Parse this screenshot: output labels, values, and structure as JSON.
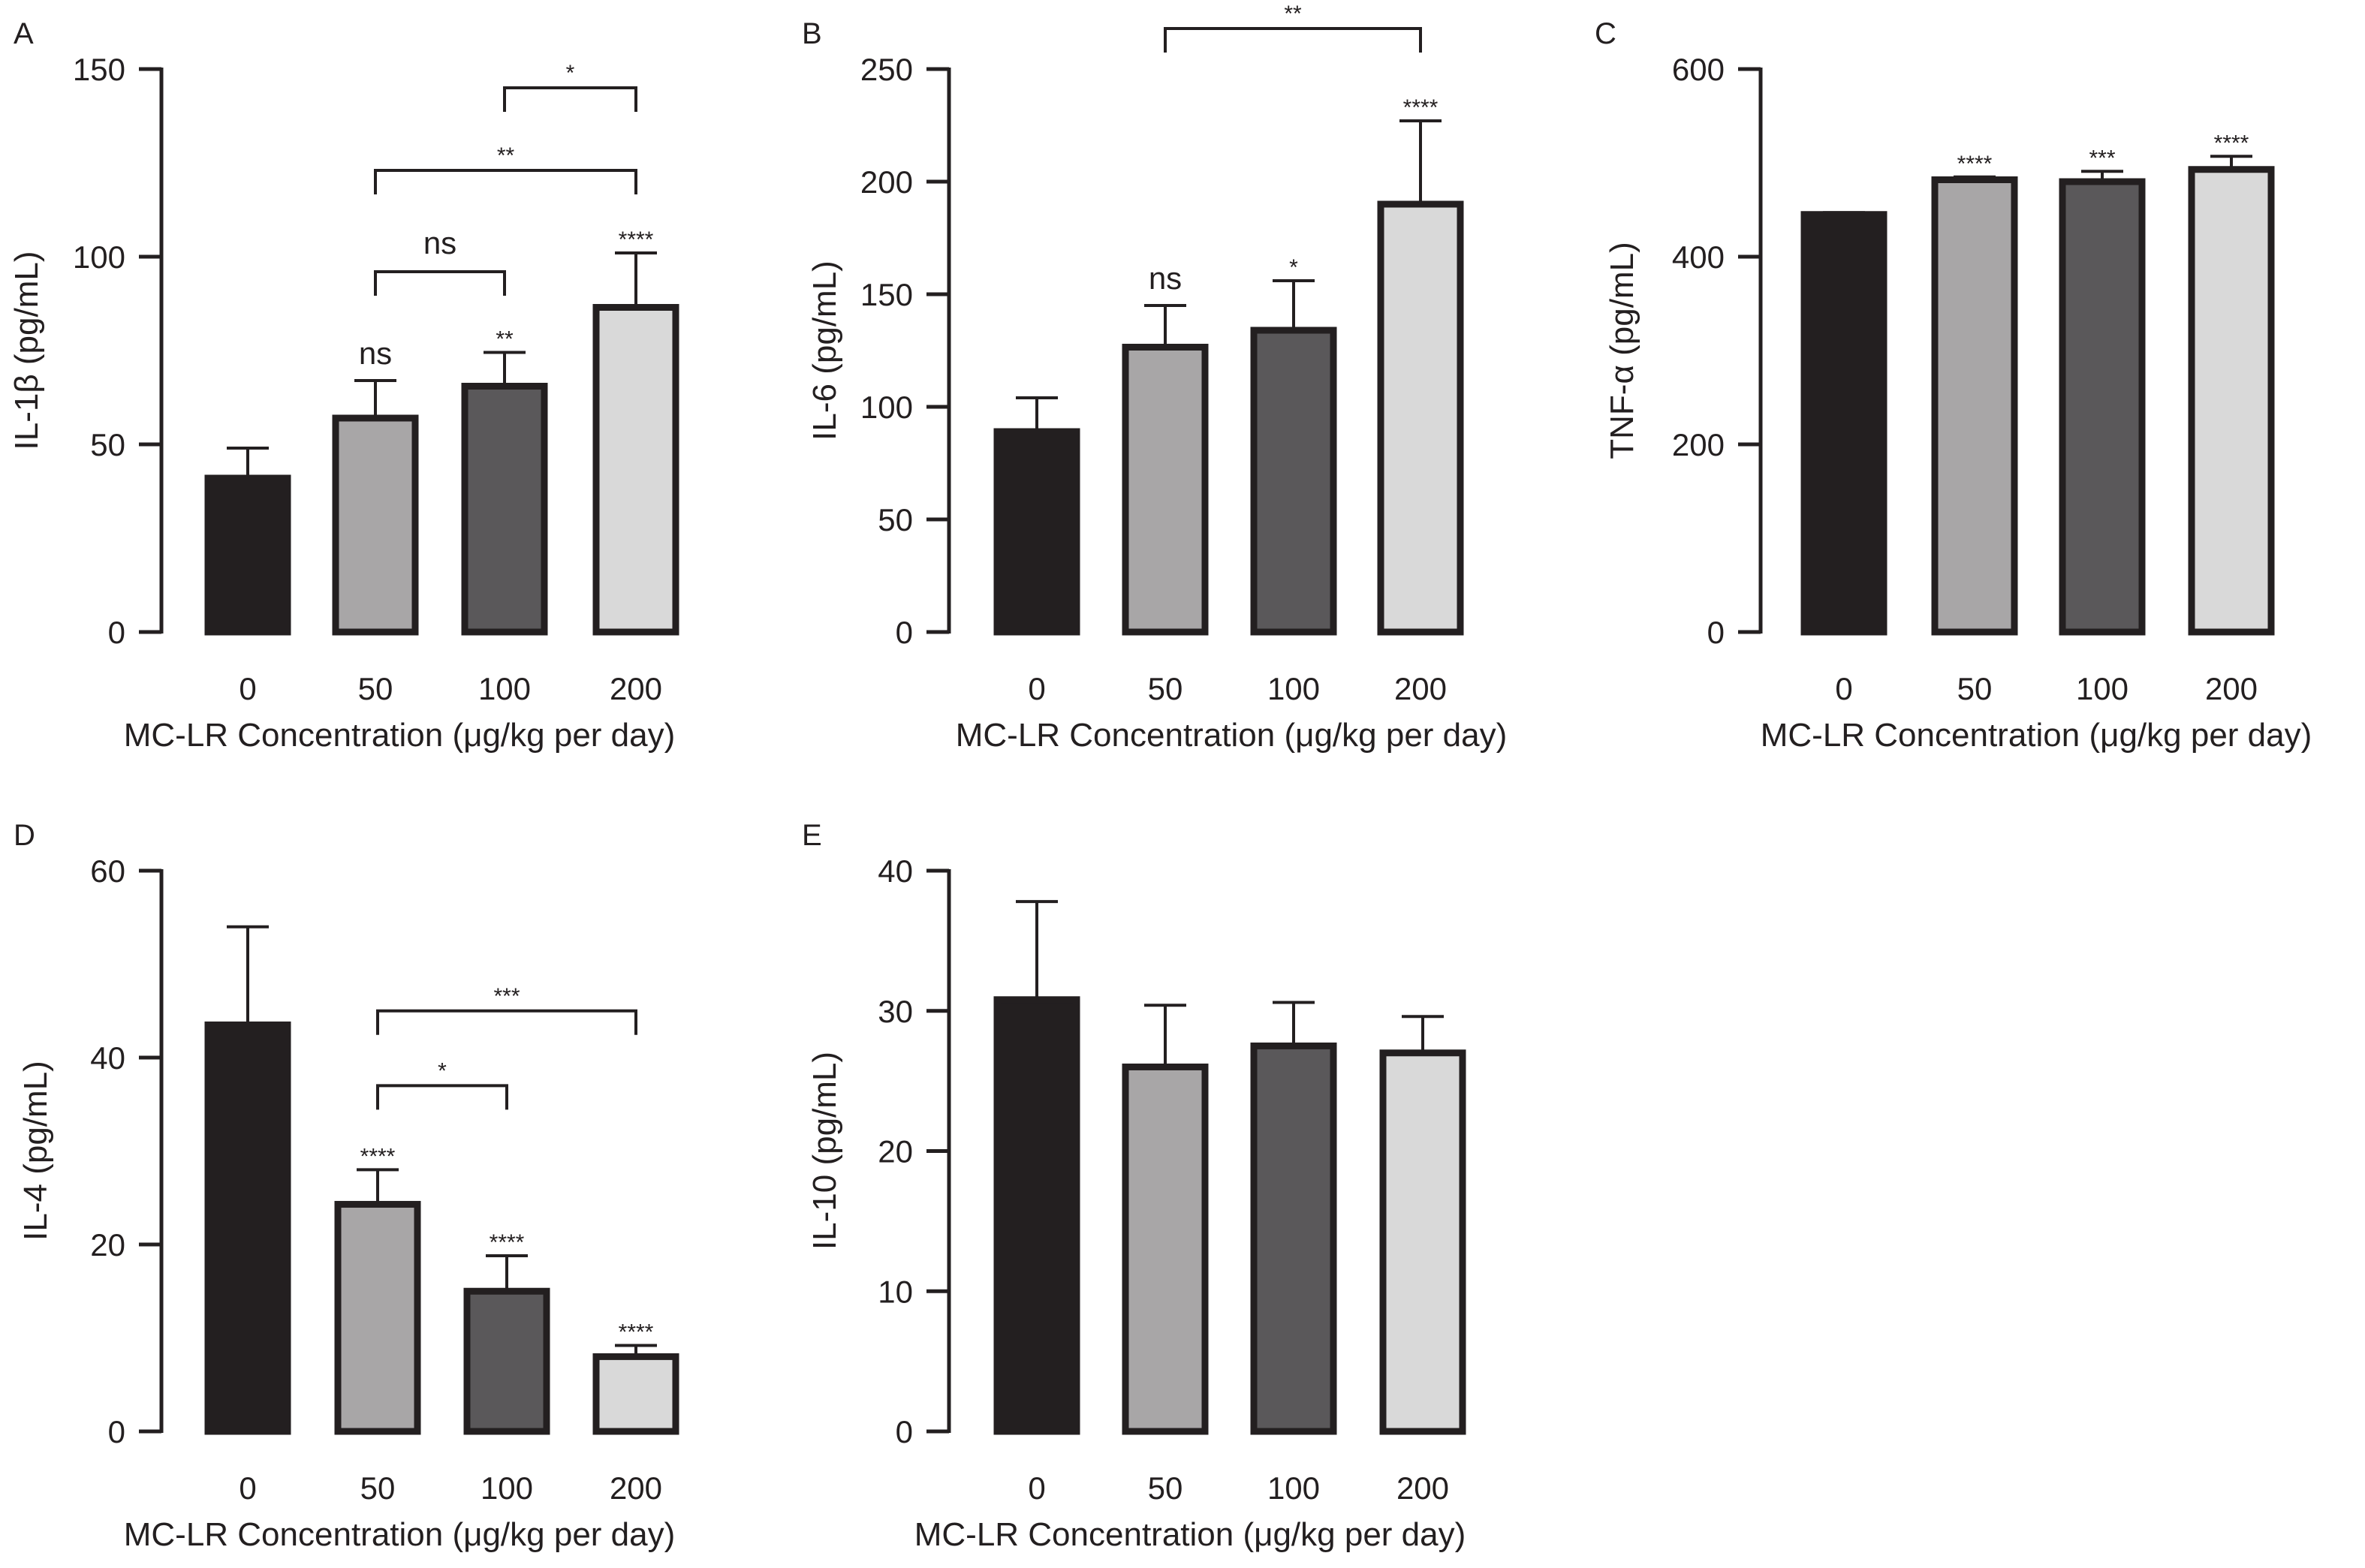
{
  "chart_data": [
    {
      "panel": "A",
      "type": "bar",
      "categories": [
        "0",
        "50",
        "100",
        "200"
      ],
      "values": [
        41,
        57,
        65.5,
        86.5
      ],
      "errors": [
        8,
        10,
        9,
        14.5
      ],
      "bar_colors": [
        "#231f20",
        "#a8a6a7",
        "#5a585a",
        "#d9d9d9"
      ],
      "ylabel": "IL-1β (pg/mL)",
      "xlabel": "MC-LR Concentration (μg/kg per day)",
      "ylim": [
        0,
        150
      ],
      "yticks": [
        "0",
        "50",
        "100",
        "150"
      ],
      "bar_annotations": [
        "",
        "ns",
        "**",
        "****"
      ],
      "brackets": [
        {
          "from": 1,
          "to": 2,
          "label": "ns",
          "y": 96
        },
        {
          "from": 1,
          "to": 3,
          "label": "**",
          "y": 123
        },
        {
          "from": 2,
          "to": 3,
          "label": "*",
          "y": 145
        }
      ]
    },
    {
      "panel": "B",
      "type": "bar",
      "categories": [
        "0",
        "50",
        "100",
        "200"
      ],
      "values": [
        89,
        126.5,
        134,
        190
      ],
      "errors": [
        15,
        18.5,
        22,
        37
      ],
      "bar_colors": [
        "#231f20",
        "#a8a6a7",
        "#5a585a",
        "#d9d9d9"
      ],
      "ylabel": "IL-6 (pg/mL)",
      "xlabel": "MC-LR Concentration (μg/kg per day)",
      "ylim": [
        0,
        250
      ],
      "yticks": [
        "0",
        "50",
        "100",
        "150",
        "200",
        "250"
      ],
      "bar_annotations": [
        "",
        "ns",
        "*",
        "****"
      ],
      "brackets": [
        {
          "from": 1,
          "to": 3,
          "label": "**",
          "y": 268
        }
      ]
    },
    {
      "panel": "C",
      "type": "bar",
      "categories": [
        "0",
        "50",
        "100",
        "200"
      ],
      "values": [
        445,
        482,
        480,
        493
      ],
      "errors": [
        2,
        3,
        11,
        14
      ],
      "bar_colors": [
        "#231f20",
        "#a8a6a7",
        "#5a585a",
        "#d9d9d9"
      ],
      "ylabel": "TNF-α (pg/mL)",
      "xlabel": "MC-LR Concentration (μg/kg per day)",
      "ylim": [
        0,
        600
      ],
      "yticks": [
        "0",
        "200",
        "400",
        "600"
      ],
      "bar_annotations": [
        "",
        "****",
        "***",
        "****"
      ],
      "brackets": []
    },
    {
      "panel": "D",
      "type": "bar",
      "categories": [
        "0",
        "50",
        "100",
        "200"
      ],
      "values": [
        43.5,
        24.3,
        15,
        8
      ],
      "errors": [
        10.5,
        3.7,
        3.8,
        1.2
      ],
      "bar_colors": [
        "#231f20",
        "#a8a6a7",
        "#5a585a",
        "#d9d9d9"
      ],
      "ylabel": "IL-4 (pg/mL)",
      "xlabel": "MC-LR Concentration (μg/kg per day)",
      "ylim": [
        0,
        60
      ],
      "yticks": [
        "0",
        "20",
        "40",
        "60"
      ],
      "bar_annotations": [
        "",
        "****",
        "****",
        "****"
      ],
      "brackets": [
        {
          "from": 1,
          "to": 2,
          "label": "*",
          "y": 37
        },
        {
          "from": 1,
          "to": 3,
          "label": "***",
          "y": 45
        }
      ]
    },
    {
      "panel": "E",
      "type": "bar",
      "categories": [
        "0",
        "50",
        "100",
        "200"
      ],
      "values": [
        30.8,
        26,
        27.5,
        27
      ],
      "errors": [
        7,
        4.4,
        3.1,
        2.6
      ],
      "bar_colors": [
        "#231f20",
        "#a8a6a7",
        "#5a585a",
        "#d9d9d9"
      ],
      "ylabel": "IL-10 (pg/mL)",
      "xlabel": "MC-LR Concentration (μg/kg per day)",
      "ylim": [
        0,
        40
      ],
      "yticks": [
        "0",
        "10",
        "20",
        "30",
        "40"
      ],
      "bar_annotations": [
        "",
        "",
        "",
        ""
      ],
      "brackets": []
    }
  ]
}
